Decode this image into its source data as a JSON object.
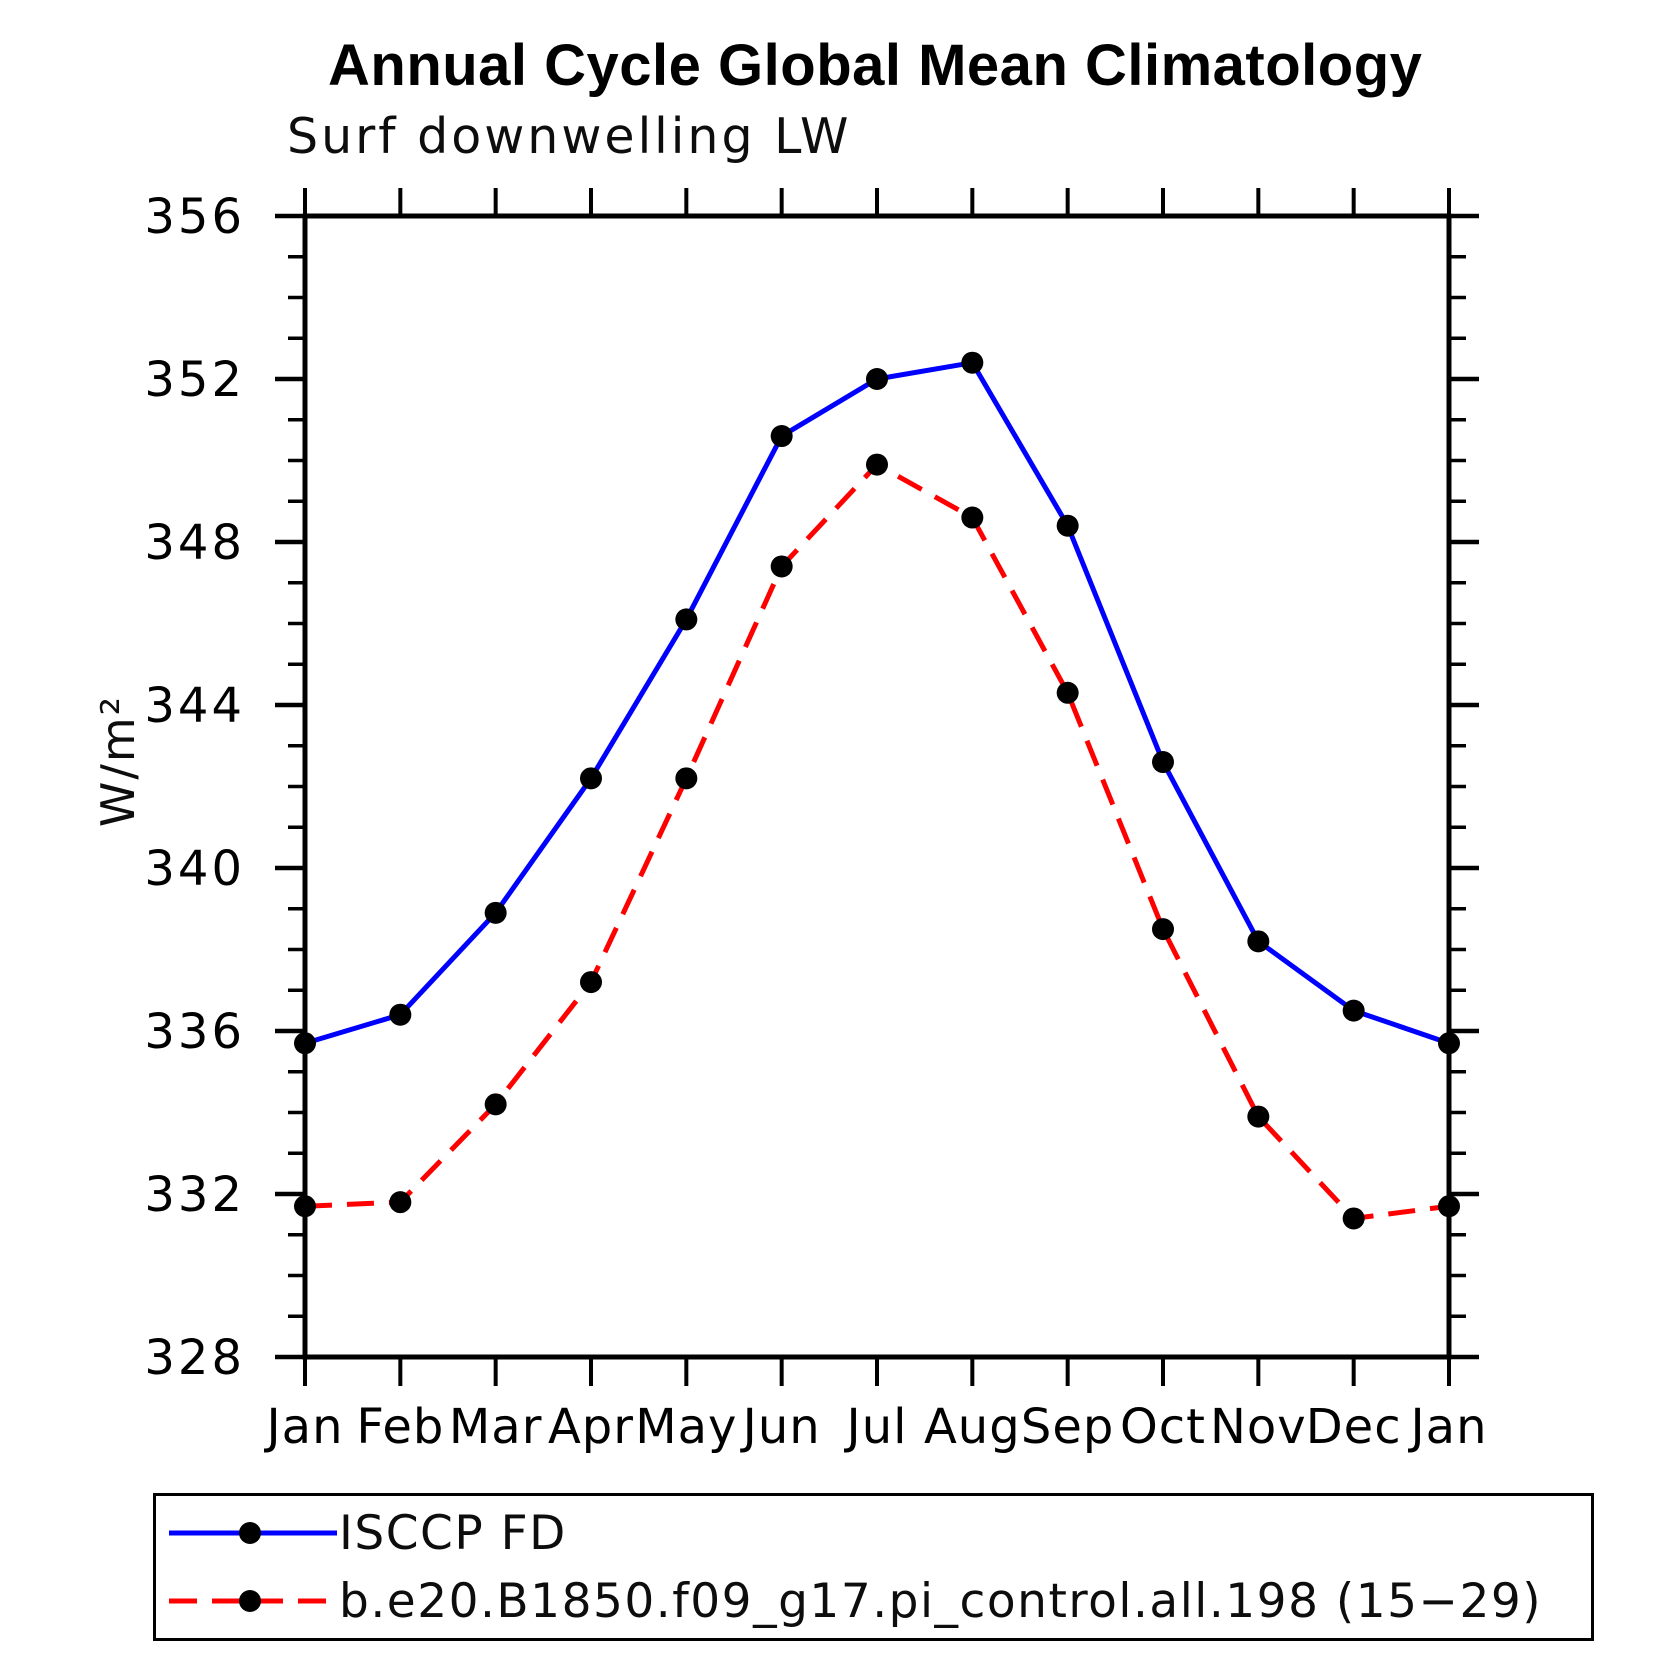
{
  "chart_data": {
    "type": "line",
    "title": "Annual Cycle Global Mean Climatology",
    "subtitle": "Surf downwelling LW",
    "ylabel": "W/m²",
    "xlabel": "",
    "categories": [
      "Jan",
      "Feb",
      "Mar",
      "Apr",
      "May",
      "Jun",
      "Jul",
      "Aug",
      "Sep",
      "Oct",
      "Nov",
      "Dec",
      "Jan"
    ],
    "series": [
      {
        "name": "ISCCP FD",
        "color": "#0000ff",
        "line_style": "solid",
        "marker": "filled-circle",
        "marker_color": "#000000",
        "values": [
          335.7,
          336.4,
          338.9,
          342.2,
          346.1,
          350.6,
          352.0,
          352.4,
          348.4,
          342.6,
          338.2,
          336.5,
          335.7
        ]
      },
      {
        "name": "b.e20.B1850.f09_g17.pi_control.all.198 (15−29)",
        "color": "#ff0000",
        "line_style": "dashed",
        "marker": "filled-circle",
        "marker_color": "#000000",
        "values": [
          331.7,
          331.8,
          334.2,
          337.2,
          342.2,
          347.4,
          349.9,
          348.6,
          344.3,
          338.5,
          333.9,
          331.4,
          331.7
        ]
      }
    ],
    "ylim": [
      328,
      356
    ],
    "ytick_step_major": 4,
    "ytick_step_minor": 1,
    "grid": false,
    "axis_color": "#000000",
    "legend_position": "bottom-left"
  }
}
